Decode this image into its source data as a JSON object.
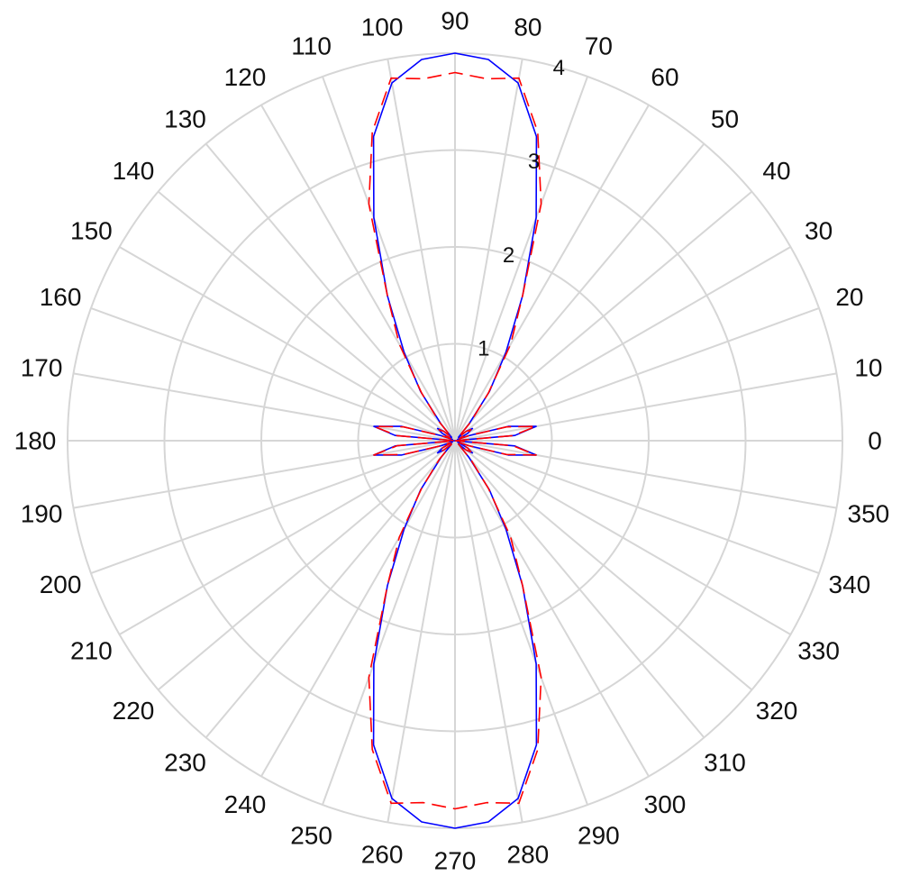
{
  "chart_data": {
    "type": "polar-line",
    "title": "",
    "theta_unit": "degrees",
    "theta_ticks": [
      0,
      10,
      20,
      30,
      40,
      50,
      60,
      70,
      80,
      90,
      100,
      110,
      120,
      130,
      140,
      150,
      160,
      170,
      180,
      190,
      200,
      210,
      220,
      230,
      240,
      250,
      260,
      270,
      280,
      290,
      300,
      310,
      320,
      330,
      340,
      350
    ],
    "theta_tick_labels": [
      "0",
      "10",
      "20",
      "30",
      "40",
      "50",
      "60",
      "70",
      "80",
      "90",
      "100",
      "110",
      "120",
      "130",
      "140",
      "150",
      "160",
      "170",
      "180",
      "190",
      "200",
      "210",
      "220",
      "230",
      "240",
      "250",
      "260",
      "270",
      "280",
      "290",
      "300",
      "310",
      "320",
      "330",
      "340",
      "350"
    ],
    "r_ticks": [
      1,
      2,
      3,
      4
    ],
    "r_tick_labels": [
      "1",
      "2",
      "3",
      "4"
    ],
    "r_lim": [
      0,
      4
    ],
    "grid": true,
    "series": [
      {
        "color": "#0000ff",
        "line_style": "solid",
        "theta": [
          0,
          5,
          10,
          15,
          20,
          25,
          30,
          35,
          40,
          45,
          50,
          55,
          60,
          65,
          70,
          75,
          80,
          85,
          90,
          95,
          100,
          105,
          110,
          115,
          120,
          125,
          130,
          135,
          140,
          145,
          150,
          155,
          160,
          165,
          170,
          175,
          180,
          185,
          190,
          195,
          200,
          205,
          210,
          215,
          220,
          225,
          230,
          235,
          240,
          245,
          250,
          255,
          260,
          265,
          270,
          275,
          280,
          285,
          290,
          295,
          300,
          305,
          310,
          315,
          320,
          325,
          330,
          335,
          340,
          345,
          350,
          355,
          360
        ],
        "r": [
          0,
          0.62,
          0.85,
          0.57,
          0.15,
          0.03,
          0.15,
          0.22,
          0.15,
          0.05,
          0.22,
          0.62,
          1.05,
          1.65,
          2.45,
          3.25,
          3.75,
          3.95,
          4.0,
          3.95,
          3.75,
          3.25,
          2.45,
          1.65,
          1.05,
          0.62,
          0.22,
          0.05,
          0.15,
          0.22,
          0.15,
          0.03,
          0.15,
          0.57,
          0.85,
          0.62,
          0,
          0.62,
          0.85,
          0.57,
          0.15,
          0.03,
          0.15,
          0.22,
          0.15,
          0.05,
          0.22,
          0.62,
          1.05,
          1.65,
          2.45,
          3.25,
          3.75,
          3.95,
          4.0,
          3.95,
          3.75,
          3.25,
          2.45,
          1.65,
          1.05,
          0.62,
          0.22,
          0.05,
          0.15,
          0.22,
          0.15,
          0.03,
          0.15,
          0.57,
          0.85,
          0.62,
          0
        ]
      },
      {
        "color": "#ff0000",
        "line_style": "dashed",
        "theta": [
          0,
          5,
          10,
          15,
          20,
          25,
          30,
          35,
          40,
          45,
          50,
          55,
          60,
          65,
          70,
          75,
          80,
          85,
          90,
          95,
          100,
          105,
          110,
          115,
          120,
          125,
          130,
          135,
          140,
          145,
          150,
          155,
          160,
          165,
          170,
          175,
          180,
          185,
          190,
          195,
          200,
          205,
          210,
          215,
          220,
          225,
          230,
          235,
          240,
          245,
          250,
          255,
          260,
          265,
          270,
          275,
          280,
          285,
          290,
          295,
          300,
          305,
          310,
          315,
          320,
          325,
          330,
          335,
          340,
          345,
          350,
          355,
          360
        ],
        "r": [
          0,
          0.6,
          0.85,
          0.55,
          0.15,
          0.05,
          0.15,
          0.2,
          0.15,
          0.05,
          0.25,
          0.6,
          1.15,
          1.65,
          2.6,
          3.3,
          3.8,
          3.75,
          3.8,
          3.75,
          3.8,
          3.3,
          2.6,
          1.65,
          1.15,
          0.6,
          0.25,
          0.05,
          0.15,
          0.2,
          0.15,
          0.05,
          0.15,
          0.55,
          0.85,
          0.6,
          0,
          0.6,
          0.85,
          0.55,
          0.15,
          0.05,
          0.15,
          0.2,
          0.15,
          0.05,
          0.25,
          0.6,
          1.15,
          1.65,
          2.6,
          3.3,
          3.8,
          3.75,
          3.8,
          3.75,
          3.8,
          3.3,
          2.6,
          1.65,
          1.15,
          0.6,
          0.25,
          0.05,
          0.15,
          0.2,
          0.15,
          0.05,
          0.15,
          0.55,
          0.85,
          0.6,
          0
        ]
      }
    ]
  }
}
